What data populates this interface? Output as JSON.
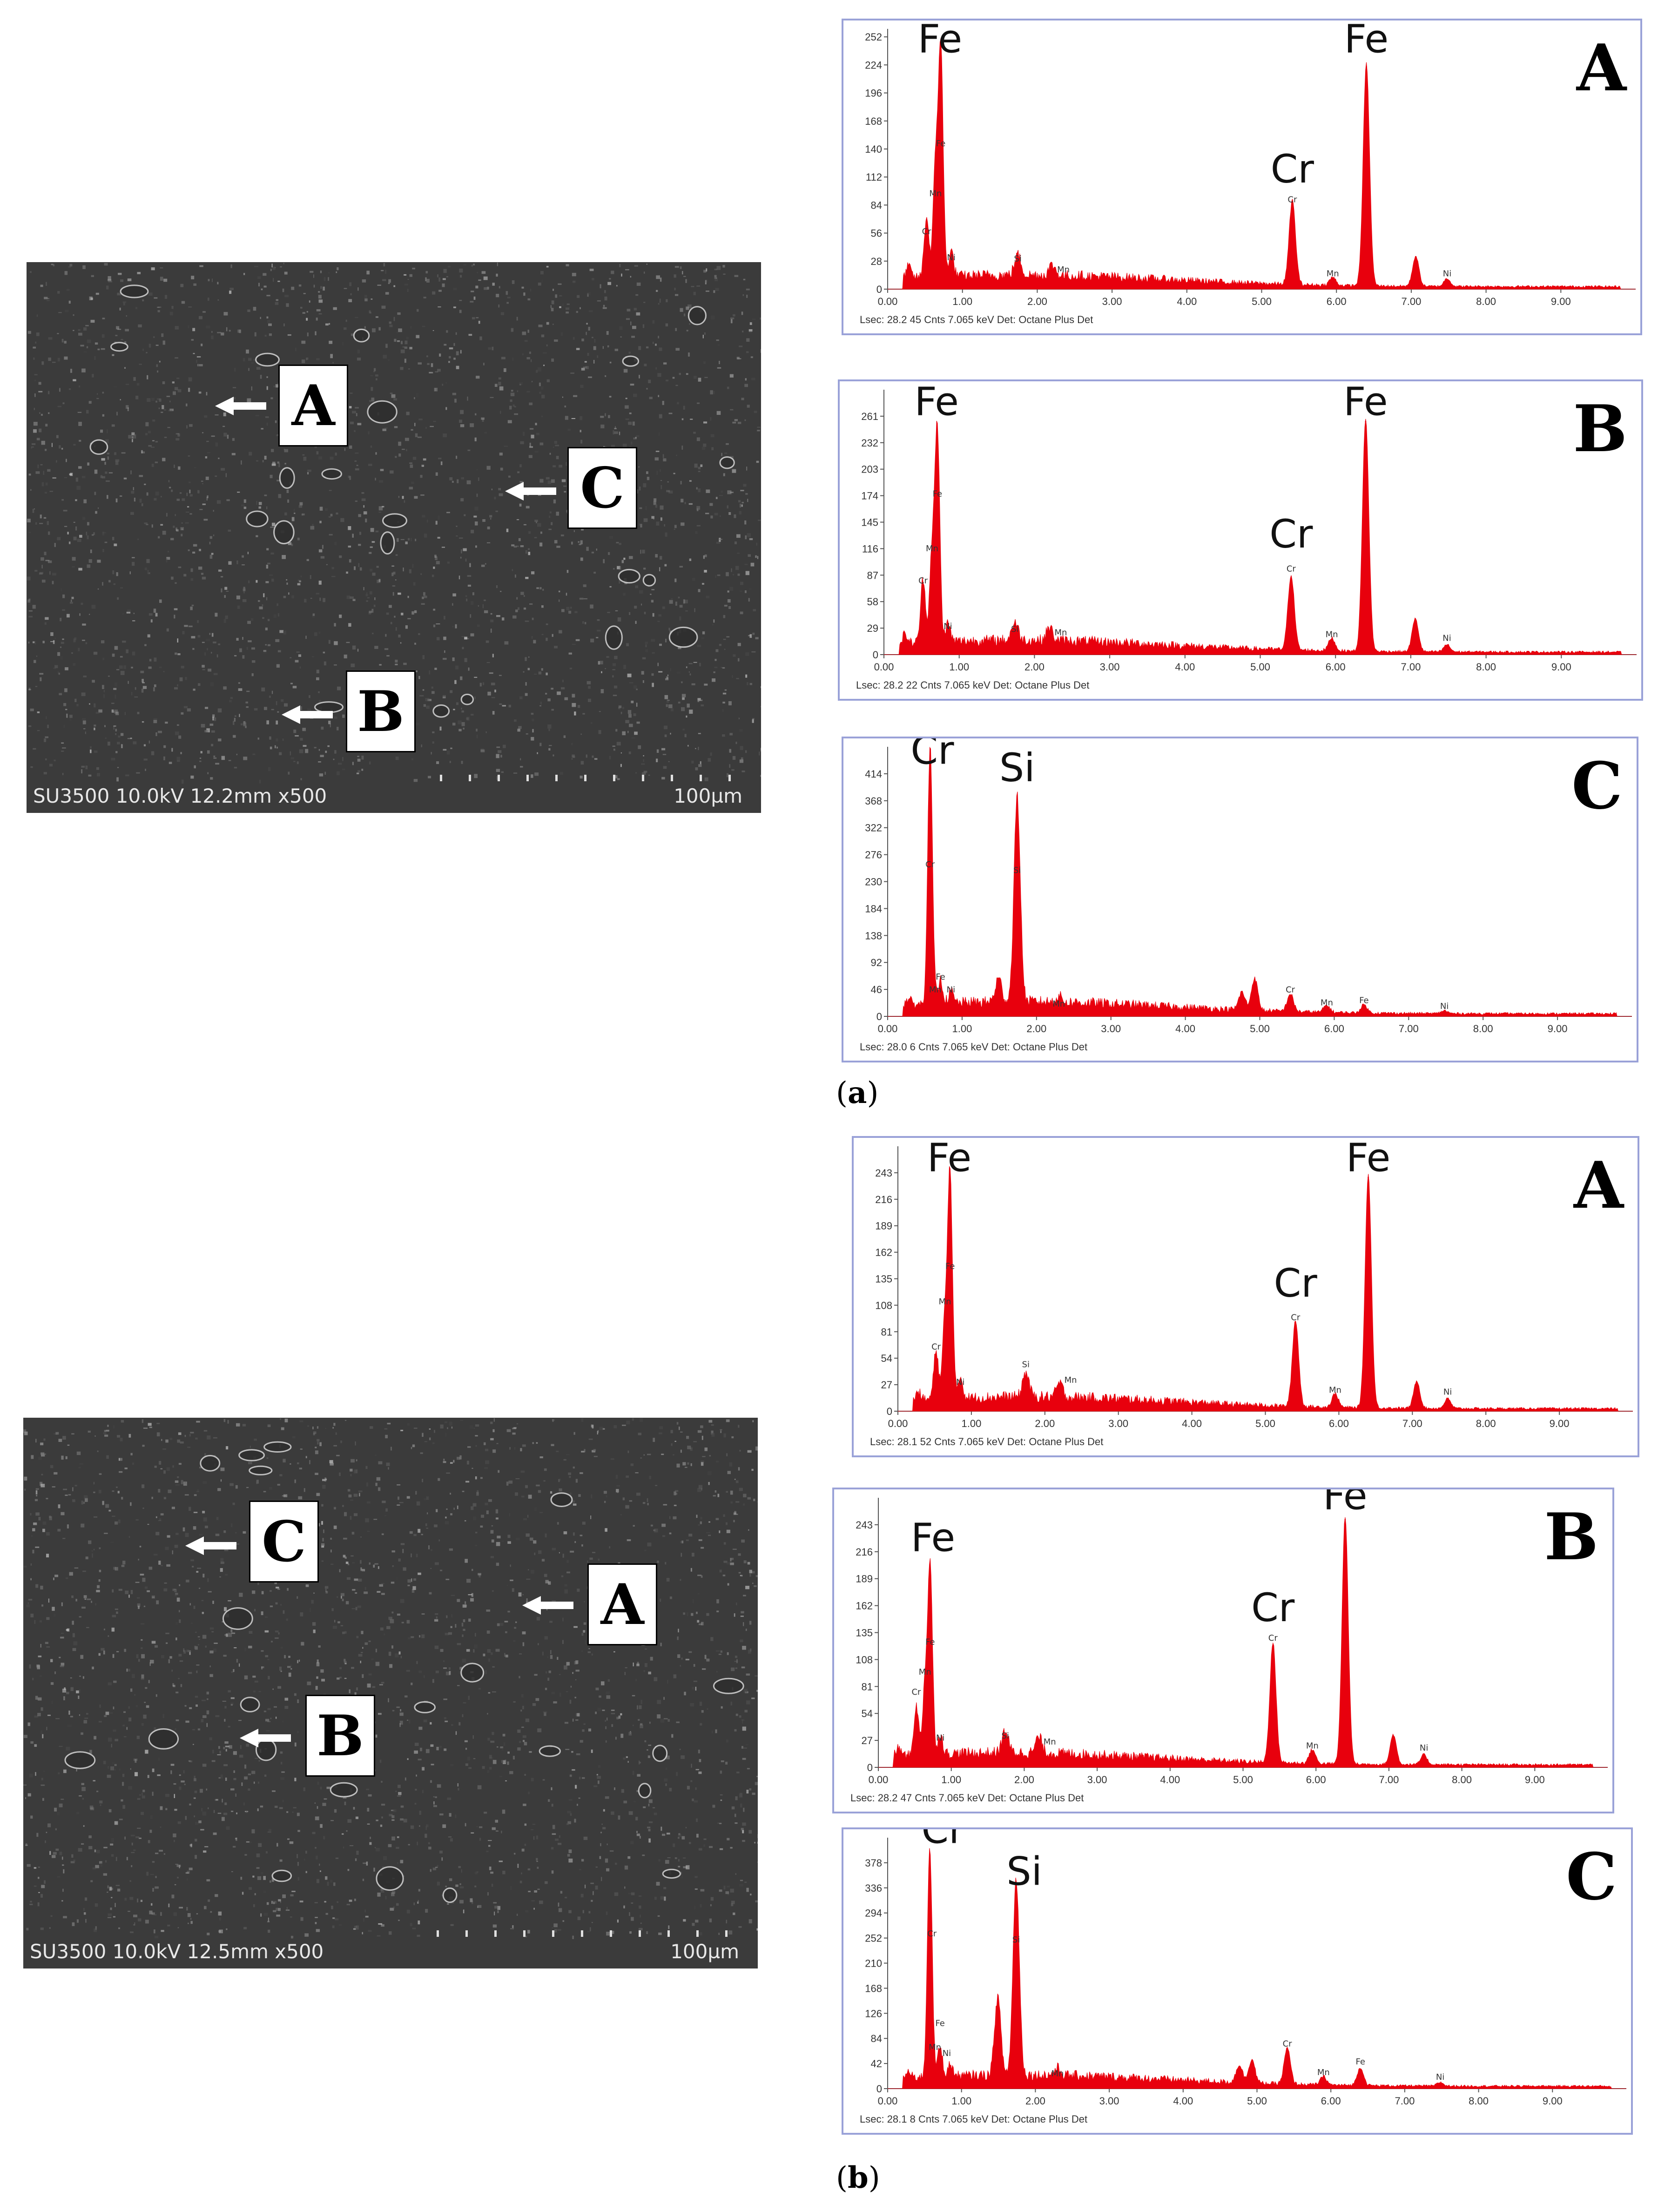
{
  "sem_images": [
    {
      "id": "a",
      "info": "SU3500 10.0kV 12.2mm x500",
      "scale": "100µm",
      "markers": [
        {
          "label": "A"
        },
        {
          "label": "C"
        },
        {
          "label": "B"
        }
      ]
    },
    {
      "id": "b",
      "info": "SU3500 10.0kV 12.5mm x500",
      "scale": "100µm",
      "markers": [
        {
          "label": "C"
        },
        {
          "label": "A"
        },
        {
          "label": "B"
        }
      ]
    }
  ],
  "captions": {
    "a": "a",
    "b": "b"
  },
  "colors": {
    "spectrum": "#e8000d",
    "panel_border": "#9aa2d8",
    "sem_bg": "#3b3b3b"
  },
  "chart_data": [
    {
      "type": "area",
      "panel_label": "A",
      "group": "a",
      "x_ticks": [
        "0.00",
        "1.00",
        "2.00",
        "3.00",
        "4.00",
        "5.00",
        "6.00",
        "7.00",
        "8.00",
        "9.00"
      ],
      "y_ticks": [
        "0",
        "28",
        "56",
        "84",
        "112",
        "140",
        "168",
        "196",
        "224",
        "252"
      ],
      "ylim": [
        0,
        260
      ],
      "xlim": [
        0,
        10
      ],
      "footer": "Lsec: 28.2   45 Cnts   7.065 keV   Det: Octane Plus Det",
      "peaks": [
        {
          "x": 0.28,
          "y": 12
        },
        {
          "x": 0.52,
          "y": 60
        },
        {
          "x": 0.64,
          "y": 110
        },
        {
          "x": 0.71,
          "y": 230
        },
        {
          "x": 0.85,
          "y": 25
        },
        {
          "x": 1.74,
          "y": 20
        },
        {
          "x": 2.2,
          "y": 10
        },
        {
          "x": 5.41,
          "y": 84
        },
        {
          "x": 5.95,
          "y": 8
        },
        {
          "x": 6.4,
          "y": 222
        },
        {
          "x": 7.06,
          "y": 30
        },
        {
          "x": 7.48,
          "y": 8
        }
      ],
      "labels": [
        {
          "text": "Fe",
          "x": 0.7,
          "y": 230,
          "big": true
        },
        {
          "text": "Fe",
          "x": 6.4,
          "y": 230,
          "big": true
        },
        {
          "text": "Cr",
          "x": 5.41,
          "y": 100,
          "big": true
        },
        {
          "text": "Si",
          "x": 1.74,
          "y": 25
        },
        {
          "text": "Mn",
          "x": 2.35,
          "y": 14
        },
        {
          "text": "Cr",
          "x": 5.41,
          "y": 84
        },
        {
          "text": "Mn",
          "x": 5.95,
          "y": 10
        },
        {
          "text": "Ni",
          "x": 7.48,
          "y": 10
        },
        {
          "text": "Fe",
          "x": 0.71,
          "y": 140
        },
        {
          "text": "Mn",
          "x": 0.64,
          "y": 90
        },
        {
          "text": "Cr",
          "x": 0.52,
          "y": 52
        },
        {
          "text": "Ni",
          "x": 0.85,
          "y": 26
        }
      ]
    },
    {
      "type": "area",
      "panel_label": "B",
      "group": "a",
      "x_ticks": [
        "0.00",
        "1.00",
        "2.00",
        "3.00",
        "4.00",
        "5.00",
        "6.00",
        "7.00",
        "8.00",
        "9.00"
      ],
      "y_ticks": [
        "0",
        "29",
        "58",
        "87",
        "116",
        "145",
        "174",
        "203",
        "232",
        "261"
      ],
      "ylim": [
        0,
        290
      ],
      "xlim": [
        0,
        10
      ],
      "footer": "Lsec: 28.2   22 Cnts   7.065 keV   Det: Octane Plus Det",
      "peaks": [
        {
          "x": 0.28,
          "y": 10
        },
        {
          "x": 0.52,
          "y": 70
        },
        {
          "x": 0.64,
          "y": 100
        },
        {
          "x": 0.71,
          "y": 232
        },
        {
          "x": 0.85,
          "y": 20
        },
        {
          "x": 1.74,
          "y": 20
        },
        {
          "x": 2.2,
          "y": 14
        },
        {
          "x": 5.41,
          "y": 82
        },
        {
          "x": 5.95,
          "y": 14
        },
        {
          "x": 6.4,
          "y": 255
        },
        {
          "x": 7.06,
          "y": 36
        },
        {
          "x": 7.48,
          "y": 8
        }
      ],
      "labels": [
        {
          "text": "Fe",
          "x": 0.7,
          "y": 255,
          "big": true
        },
        {
          "text": "Fe",
          "x": 6.4,
          "y": 255,
          "big": true
        },
        {
          "text": "Cr",
          "x": 5.41,
          "y": 110,
          "big": true
        },
        {
          "text": "Si",
          "x": 1.74,
          "y": 22
        },
        {
          "text": "Mn",
          "x": 2.35,
          "y": 18
        },
        {
          "text": "Cr",
          "x": 5.41,
          "y": 88
        },
        {
          "text": "Mn",
          "x": 5.95,
          "y": 16
        },
        {
          "text": "Ni",
          "x": 7.48,
          "y": 12
        },
        {
          "text": "Fe",
          "x": 0.71,
          "y": 170
        },
        {
          "text": "Mn",
          "x": 0.64,
          "y": 110
        },
        {
          "text": "Cr",
          "x": 0.52,
          "y": 75
        },
        {
          "text": "Ni",
          "x": 0.85,
          "y": 25
        }
      ]
    },
    {
      "type": "area",
      "panel_label": "C",
      "group": "a",
      "x_ticks": [
        "0.00",
        "1.00",
        "2.00",
        "3.00",
        "4.00",
        "5.00",
        "6.00",
        "7.00",
        "8.00",
        "9.00"
      ],
      "y_ticks": [
        "0",
        "46",
        "92",
        "138",
        "184",
        "230",
        "276",
        "322",
        "368",
        "414"
      ],
      "ylim": [
        0,
        460
      ],
      "xlim": [
        0,
        10
      ],
      "footer": "Lsec: 28.0   6 Cnts   7.065 keV   Det: Octane Plus Det",
      "peaks": [
        {
          "x": 0.28,
          "y": 10
        },
        {
          "x": 0.57,
          "y": 440
        },
        {
          "x": 0.71,
          "y": 40
        },
        {
          "x": 0.85,
          "y": 20
        },
        {
          "x": 1.49,
          "y": 40
        },
        {
          "x": 1.74,
          "y": 350
        },
        {
          "x": 2.3,
          "y": 10
        },
        {
          "x": 4.76,
          "y": 30
        },
        {
          "x": 4.93,
          "y": 55
        },
        {
          "x": 5.41,
          "y": 30
        },
        {
          "x": 5.9,
          "y": 12
        },
        {
          "x": 6.4,
          "y": 14
        },
        {
          "x": 7.48,
          "y": 5
        }
      ],
      "labels": [
        {
          "text": "Cr",
          "x": 0.6,
          "y": 420,
          "big": true
        },
        {
          "text": "Si",
          "x": 1.74,
          "y": 390,
          "big": true
        },
        {
          "text": "Fe",
          "x": 0.71,
          "y": 58
        },
        {
          "text": "Mn",
          "x": 0.64,
          "y": 36
        },
        {
          "text": "Ni",
          "x": 0.85,
          "y": 36
        },
        {
          "text": "Mn",
          "x": 2.3,
          "y": 12
        },
        {
          "text": "Cr",
          "x": 5.41,
          "y": 36
        },
        {
          "text": "Mn",
          "x": 5.9,
          "y": 14
        },
        {
          "text": "Fe",
          "x": 6.4,
          "y": 18
        },
        {
          "text": "Ni",
          "x": 7.48,
          "y": 8
        },
        {
          "text": "Cr",
          "x": 0.57,
          "y": 250
        },
        {
          "text": "Si",
          "x": 1.74,
          "y": 240
        }
      ]
    },
    {
      "type": "area",
      "panel_label": "A",
      "group": "b",
      "x_ticks": [
        "0.00",
        "1.00",
        "2.00",
        "3.00",
        "4.00",
        "5.00",
        "6.00",
        "7.00",
        "8.00",
        "9.00"
      ],
      "y_ticks": [
        "0",
        "27",
        "54",
        "81",
        "108",
        "135",
        "162",
        "189",
        "216",
        "243"
      ],
      "ylim": [
        0,
        270
      ],
      "xlim": [
        0,
        10
      ],
      "footer": "Lsec: 28.1   52 Cnts   7.065 keV   Det: Octane Plus Det",
      "peaks": [
        {
          "x": 0.28,
          "y": 8
        },
        {
          "x": 0.52,
          "y": 50
        },
        {
          "x": 0.64,
          "y": 80
        },
        {
          "x": 0.71,
          "y": 232
        },
        {
          "x": 0.85,
          "y": 22
        },
        {
          "x": 1.74,
          "y": 25
        },
        {
          "x": 2.2,
          "y": 14
        },
        {
          "x": 5.41,
          "y": 88
        },
        {
          "x": 5.95,
          "y": 14
        },
        {
          "x": 6.4,
          "y": 238
        },
        {
          "x": 7.06,
          "y": 28
        },
        {
          "x": 7.48,
          "y": 10
        }
      ],
      "labels": [
        {
          "text": "Fe",
          "x": 0.7,
          "y": 238,
          "big": true
        },
        {
          "text": "Fe",
          "x": 6.4,
          "y": 238,
          "big": true
        },
        {
          "text": "Cr",
          "x": 5.41,
          "y": 110,
          "big": true
        },
        {
          "text": "Si",
          "x": 1.74,
          "y": 42
        },
        {
          "text": "Mn",
          "x": 2.35,
          "y": 26
        },
        {
          "text": "Cr",
          "x": 5.41,
          "y": 90
        },
        {
          "text": "Mn",
          "x": 5.95,
          "y": 16
        },
        {
          "text": "Ni",
          "x": 7.48,
          "y": 14
        },
        {
          "text": "Fe",
          "x": 0.71,
          "y": 142
        },
        {
          "text": "Mn",
          "x": 0.64,
          "y": 106
        },
        {
          "text": "Cr",
          "x": 0.52,
          "y": 60
        },
        {
          "text": "Ni",
          "x": 0.85,
          "y": 24
        }
      ]
    },
    {
      "type": "area",
      "panel_label": "B",
      "group": "b",
      "x_ticks": [
        "0.00",
        "1.00",
        "2.00",
        "3.00",
        "4.00",
        "5.00",
        "6.00",
        "7.00",
        "8.00",
        "9.00"
      ],
      "y_ticks": [
        "0",
        "27",
        "54",
        "81",
        "108",
        "135",
        "162",
        "189",
        "216",
        "243"
      ],
      "ylim": [
        0,
        270
      ],
      "xlim": [
        0,
        10
      ],
      "footer": "Lsec: 28.2   47 Cnts   7.065 keV   Det: Octane Plus Det",
      "peaks": [
        {
          "x": 0.28,
          "y": 8
        },
        {
          "x": 0.52,
          "y": 50
        },
        {
          "x": 0.64,
          "y": 70
        },
        {
          "x": 0.71,
          "y": 190
        },
        {
          "x": 0.85,
          "y": 20
        },
        {
          "x": 1.74,
          "y": 22
        },
        {
          "x": 2.2,
          "y": 16
        },
        {
          "x": 5.41,
          "y": 120
        },
        {
          "x": 5.95,
          "y": 14
        },
        {
          "x": 6.4,
          "y": 248
        },
        {
          "x": 7.06,
          "y": 30
        },
        {
          "x": 7.48,
          "y": 10
        }
      ],
      "labels": [
        {
          "text": "Fe",
          "x": 0.75,
          "y": 210,
          "big": true
        },
        {
          "text": "Fe",
          "x": 6.4,
          "y": 252,
          "big": true
        },
        {
          "text": "Cr",
          "x": 5.41,
          "y": 140,
          "big": true
        },
        {
          "text": "Si",
          "x": 1.74,
          "y": 26
        },
        {
          "text": "Mn",
          "x": 2.35,
          "y": 20
        },
        {
          "text": "Cr",
          "x": 5.41,
          "y": 124
        },
        {
          "text": "Mn",
          "x": 5.95,
          "y": 16
        },
        {
          "text": "Ni",
          "x": 7.48,
          "y": 14
        },
        {
          "text": "Fe",
          "x": 0.71,
          "y": 120
        },
        {
          "text": "Mn",
          "x": 0.64,
          "y": 90
        },
        {
          "text": "Cr",
          "x": 0.52,
          "y": 70
        },
        {
          "text": "Ni",
          "x": 0.85,
          "y": 24
        }
      ]
    },
    {
      "type": "area",
      "panel_label": "C",
      "group": "b",
      "x_ticks": [
        "0.00",
        "1.00",
        "2.00",
        "3.00",
        "4.00",
        "5.00",
        "6.00",
        "7.00",
        "8.00",
        "9.00"
      ],
      "y_ticks": [
        "0",
        "42",
        "84",
        "126",
        "168",
        "210",
        "252",
        "294",
        "336",
        "378"
      ],
      "ylim": [
        0,
        420
      ],
      "xlim": [
        0,
        10
      ],
      "footer": "Lsec: 28.1   8 Cnts   7.065 keV   Det: Octane Plus Det",
      "peaks": [
        {
          "x": 0.28,
          "y": 10
        },
        {
          "x": 0.57,
          "y": 390
        },
        {
          "x": 0.71,
          "y": 50
        },
        {
          "x": 0.85,
          "y": 20
        },
        {
          "x": 1.49,
          "y": 130
        },
        {
          "x": 1.74,
          "y": 330
        },
        {
          "x": 2.3,
          "y": 12
        },
        {
          "x": 4.76,
          "y": 30
        },
        {
          "x": 4.93,
          "y": 40
        },
        {
          "x": 5.41,
          "y": 60
        },
        {
          "x": 5.9,
          "y": 14
        },
        {
          "x": 6.4,
          "y": 30
        },
        {
          "x": 7.48,
          "y": 6
        }
      ],
      "labels": [
        {
          "text": "Cr",
          "x": 0.75,
          "y": 400,
          "big": true
        },
        {
          "text": "Si",
          "x": 1.85,
          "y": 330,
          "big": true
        },
        {
          "text": "Fe",
          "x": 0.71,
          "y": 100
        },
        {
          "text": "Mn",
          "x": 0.64,
          "y": 60
        },
        {
          "text": "Ni",
          "x": 0.8,
          "y": 50
        },
        {
          "text": "Mn",
          "x": 2.3,
          "y": 16
        },
        {
          "text": "Cr",
          "x": 5.41,
          "y": 66
        },
        {
          "text": "Mn",
          "x": 5.9,
          "y": 18
        },
        {
          "text": "Fe",
          "x": 6.4,
          "y": 36
        },
        {
          "text": "Ni",
          "x": 7.48,
          "y": 10
        },
        {
          "text": "Cr",
          "x": 0.6,
          "y": 250
        },
        {
          "text": "Si",
          "x": 1.74,
          "y": 240
        }
      ]
    }
  ]
}
